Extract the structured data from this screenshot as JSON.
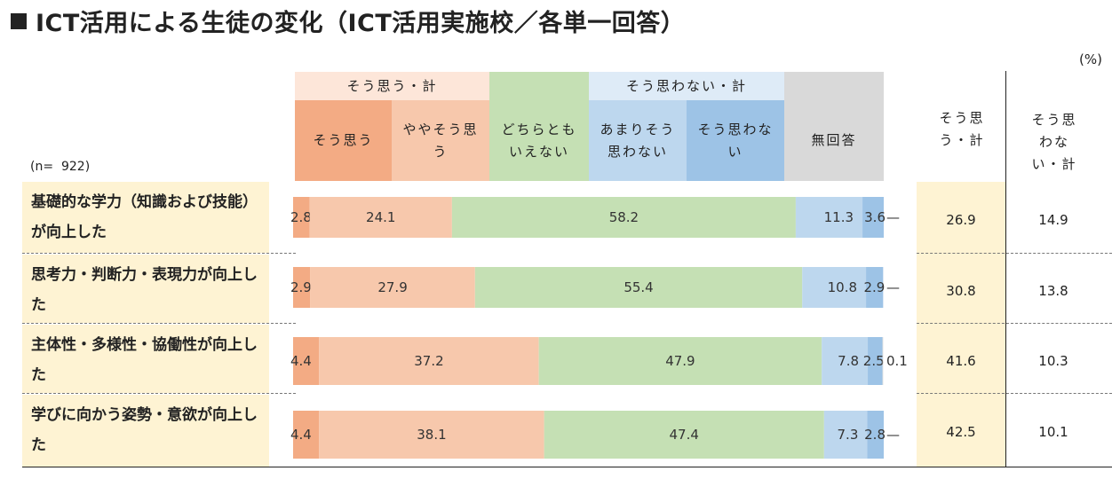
{
  "title": "ICT活用による生徒の変化（ICT活用実施校／各単一回答）",
  "unit": "(%)",
  "n_label": "(n=  922)",
  "header": {
    "group_agree": "そう思う・計",
    "group_disagree": "そう思わない・計",
    "cat_labels": [
      "そう思う",
      "ややそう思う",
      "どちらともいえない",
      "あまりそう思わない",
      "そう思わない",
      "無回答"
    ],
    "sum_agree": "そう思う・計",
    "sum_disagree": "そう思わない・計"
  },
  "colors": [
    "#f3ab84",
    "#f7c8ac",
    "#c5e0b4",
    "#bdd7ee",
    "#9dc3e6",
    "#d9d9d9"
  ],
  "header_colors": {
    "group_agree": "#fde6d9",
    "group_disagree": "#deebf7",
    "agree_col_bg": "#fef3d3"
  },
  "chart_data": {
    "type": "bar",
    "orientation": "horizontal",
    "stacked": true,
    "categories": [
      "基礎的な学力（知識および技能）が向上した",
      "思考力・判断力・表現力が向上した",
      "主体性・多様性・協働性が向上した",
      "学びに向かう姿勢・意欲が向上した"
    ],
    "series": [
      {
        "name": "そう思う",
        "values": [
          2.8,
          2.9,
          4.4,
          4.4
        ]
      },
      {
        "name": "ややそう思う",
        "values": [
          24.1,
          27.9,
          37.2,
          38.1
        ]
      },
      {
        "name": "どちらともいえない",
        "values": [
          58.2,
          55.4,
          47.9,
          47.4
        ]
      },
      {
        "name": "あまりそう思わない",
        "values": [
          11.3,
          10.8,
          7.8,
          7.3
        ]
      },
      {
        "name": "そう思わない",
        "values": [
          3.6,
          2.9,
          2.5,
          2.8
        ]
      },
      {
        "name": "無回答",
        "values": [
          null,
          null,
          0.1,
          null
        ]
      }
    ],
    "value_labels": [
      [
        "2.8",
        "24.1",
        "58.2",
        "11.3",
        "3.6",
        "—"
      ],
      [
        "2.9",
        "27.9",
        "55.4",
        "10.8",
        "2.9",
        "—"
      ],
      [
        "4.4",
        "37.2",
        "47.9",
        "7.8",
        "2.5",
        "0.1"
      ],
      [
        "4.4",
        "38.1",
        "47.4",
        "7.3",
        "2.8",
        "—"
      ]
    ],
    "sum_agree": [
      "26.9",
      "30.8",
      "41.6",
      "42.5"
    ],
    "sum_disagree": [
      "14.9",
      "13.8",
      "10.3",
      "10.1"
    ],
    "xlim": [
      0,
      100
    ]
  }
}
